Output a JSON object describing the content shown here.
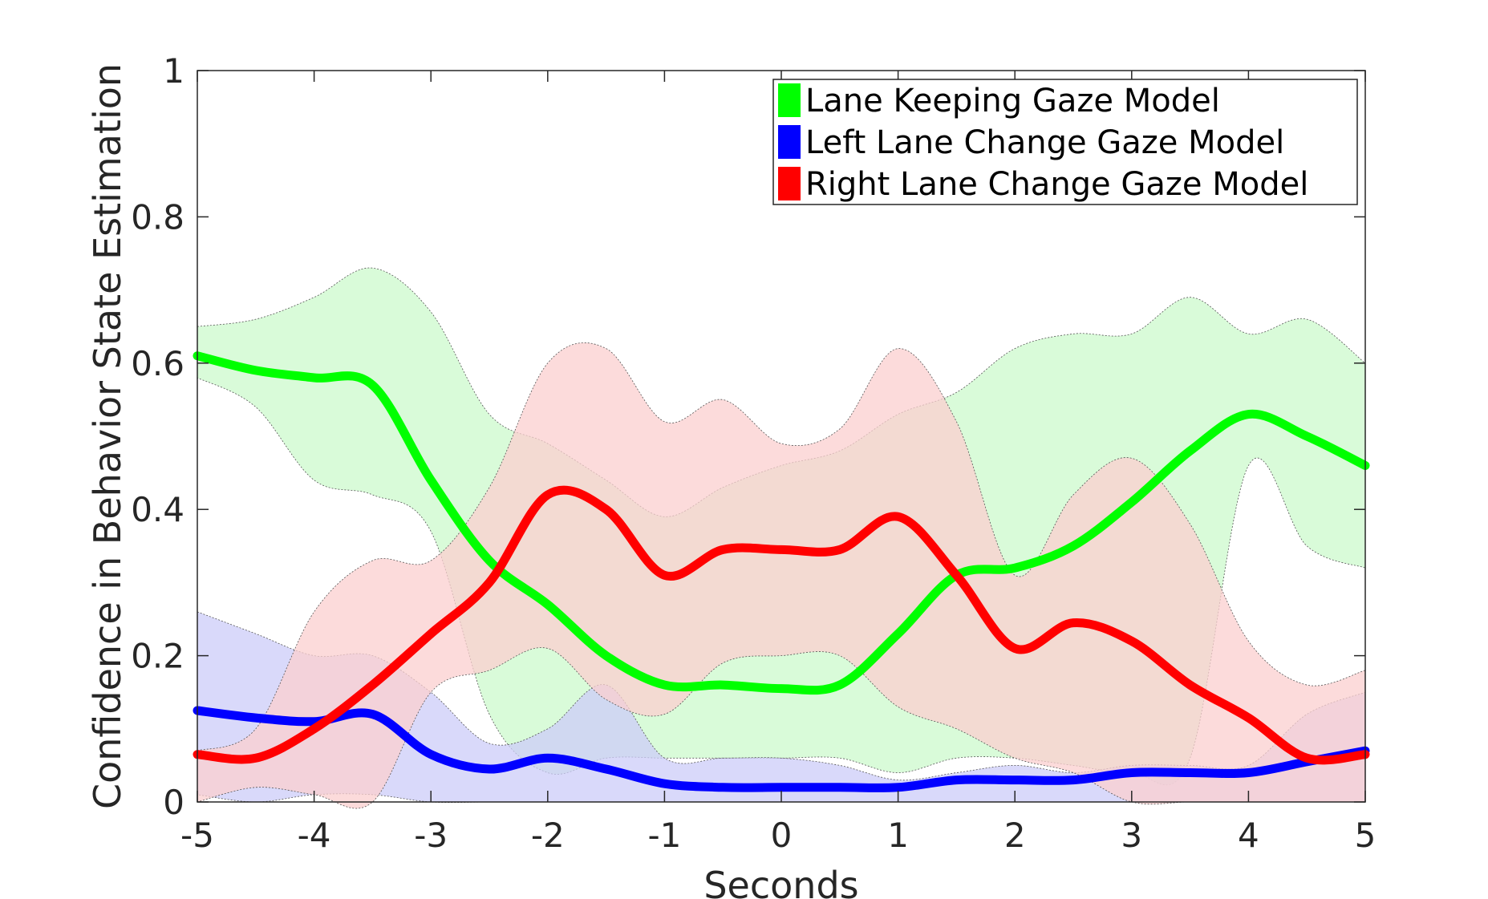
{
  "chart_data": {
    "type": "line",
    "title": "",
    "xlabel": "Seconds",
    "ylabel": "Confidence in Behavior State Estimation",
    "xlim": [
      -5,
      5
    ],
    "ylim": [
      0,
      1
    ],
    "xticks": [
      -5,
      -4,
      -3,
      -2,
      -1,
      0,
      1,
      2,
      3,
      4,
      5
    ],
    "yticks": [
      0,
      0.2,
      0.4,
      0.6,
      0.8,
      1
    ],
    "ytick_labels": [
      "0",
      "0.2",
      "0.4",
      "0.6",
      "0.8",
      "1"
    ],
    "grid": false,
    "legend_position": "top-right",
    "x": [
      -5,
      -4.5,
      -4,
      -3.5,
      -3,
      -2.5,
      -2,
      -1.5,
      -1,
      -0.5,
      0,
      0.5,
      1,
      1.5,
      2,
      2.5,
      3,
      3.5,
      4,
      4.5,
      5
    ],
    "series": [
      {
        "name": "Lane Keeping Gaze Model",
        "color": "#00ff00",
        "band_color": "#ccfacc",
        "values": [
          0.61,
          0.59,
          0.58,
          0.57,
          0.44,
          0.33,
          0.27,
          0.2,
          0.16,
          0.16,
          0.155,
          0.16,
          0.23,
          0.31,
          0.32,
          0.35,
          0.41,
          0.48,
          0.53,
          0.5,
          0.46
        ],
        "upper": [
          0.65,
          0.66,
          0.69,
          0.73,
          0.67,
          0.53,
          0.49,
          0.44,
          0.39,
          0.43,
          0.46,
          0.48,
          0.53,
          0.56,
          0.62,
          0.64,
          0.64,
          0.69,
          0.64,
          0.66,
          0.6
        ],
        "lower": [
          0.58,
          0.54,
          0.44,
          0.42,
          0.37,
          0.12,
          0.04,
          0.06,
          0.06,
          0.06,
          0.06,
          0.06,
          0.04,
          0.06,
          0.06,
          0.05,
          0.04,
          0.06,
          0.46,
          0.35,
          0.32
        ]
      },
      {
        "name": "Left Lane Change Gaze Model",
        "color": "#0000ff",
        "band_color": "#ccccf8",
        "values": [
          0.125,
          0.115,
          0.11,
          0.12,
          0.065,
          0.045,
          0.06,
          0.045,
          0.025,
          0.02,
          0.02,
          0.02,
          0.02,
          0.03,
          0.03,
          0.03,
          0.04,
          0.04,
          0.04,
          0.055,
          0.07
        ],
        "upper": [
          0.26,
          0.23,
          0.2,
          0.2,
          0.15,
          0.08,
          0.1,
          0.16,
          0.06,
          0.06,
          0.06,
          0.05,
          0.03,
          0.04,
          0.05,
          0.04,
          0.05,
          0.05,
          0.05,
          0.12,
          0.15
        ],
        "lower": [
          0.01,
          0.0,
          0.01,
          0.01,
          0.0,
          0.0,
          0.0,
          0.0,
          0.0,
          0.0,
          0.0,
          0.0,
          0.0,
          0.0,
          0.0,
          0.0,
          0.0,
          0.0,
          0.0,
          0.0,
          0.0
        ]
      },
      {
        "name": "Right Lane Change Gaze Model",
        "color": "#ff0000",
        "band_color": "#fbcfcf",
        "values": [
          0.065,
          0.06,
          0.1,
          0.16,
          0.23,
          0.3,
          0.42,
          0.4,
          0.31,
          0.345,
          0.345,
          0.345,
          0.39,
          0.31,
          0.21,
          0.245,
          0.22,
          0.16,
          0.115,
          0.06,
          0.065
        ],
        "upper": [
          0.07,
          0.1,
          0.26,
          0.33,
          0.33,
          0.43,
          0.6,
          0.62,
          0.52,
          0.55,
          0.49,
          0.51,
          0.62,
          0.52,
          0.31,
          0.42,
          0.47,
          0.38,
          0.22,
          0.16,
          0.18
        ],
        "lower": [
          0.0,
          0.02,
          0.01,
          0.0,
          0.15,
          0.18,
          0.21,
          0.14,
          0.12,
          0.19,
          0.2,
          0.2,
          0.13,
          0.1,
          0.06,
          0.04,
          0.0,
          0.0,
          0.0,
          0.0,
          0.0
        ]
      }
    ]
  }
}
